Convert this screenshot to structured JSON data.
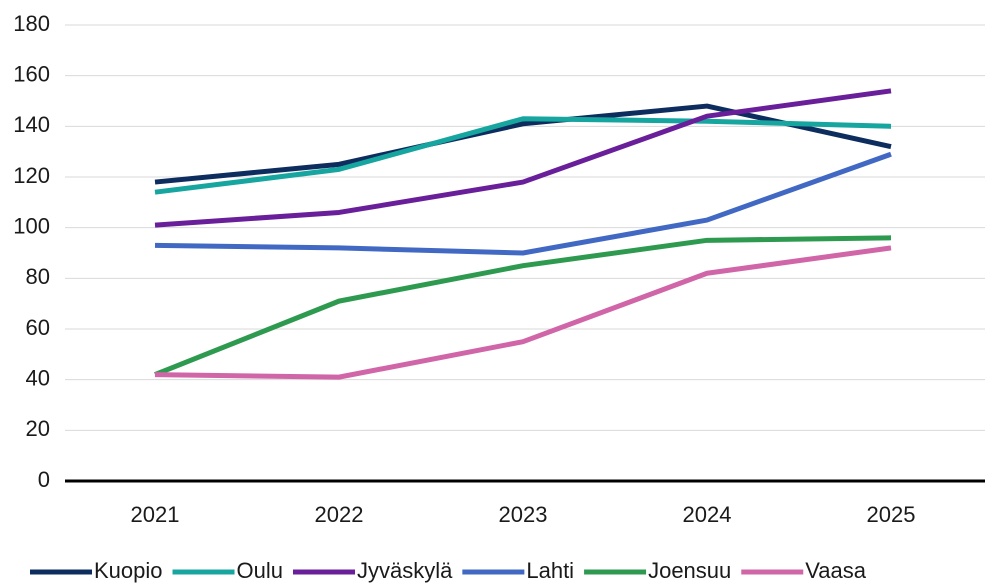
{
  "chart_data": {
    "type": "line",
    "categories": [
      "2021",
      "2022",
      "2023",
      "2024",
      "2025"
    ],
    "series": [
      {
        "name": "Kuopio",
        "color": "#0d2d5e",
        "values": [
          118,
          125,
          141,
          148,
          132
        ]
      },
      {
        "name": "Oulu",
        "color": "#17a5a0",
        "values": [
          114,
          123,
          143,
          142,
          140
        ]
      },
      {
        "name": "Jyväskylä",
        "color": "#6a1f9a",
        "values": [
          101,
          106,
          118,
          144,
          154
        ]
      },
      {
        "name": "Lahti",
        "color": "#4169c4",
        "values": [
          93,
          92,
          90,
          103,
          129
        ]
      },
      {
        "name": "Joensuu",
        "color": "#2e9a50",
        "values": [
          42,
          71,
          85,
          95,
          96
        ]
      },
      {
        "name": "Vaasa",
        "color": "#d066a8",
        "values": [
          42,
          41,
          55,
          82,
          92
        ]
      }
    ],
    "ylim": [
      0,
      180
    ],
    "yticks": [
      0,
      20,
      40,
      60,
      80,
      100,
      120,
      140,
      160,
      180
    ],
    "grid": true,
    "legend": "bottom"
  }
}
